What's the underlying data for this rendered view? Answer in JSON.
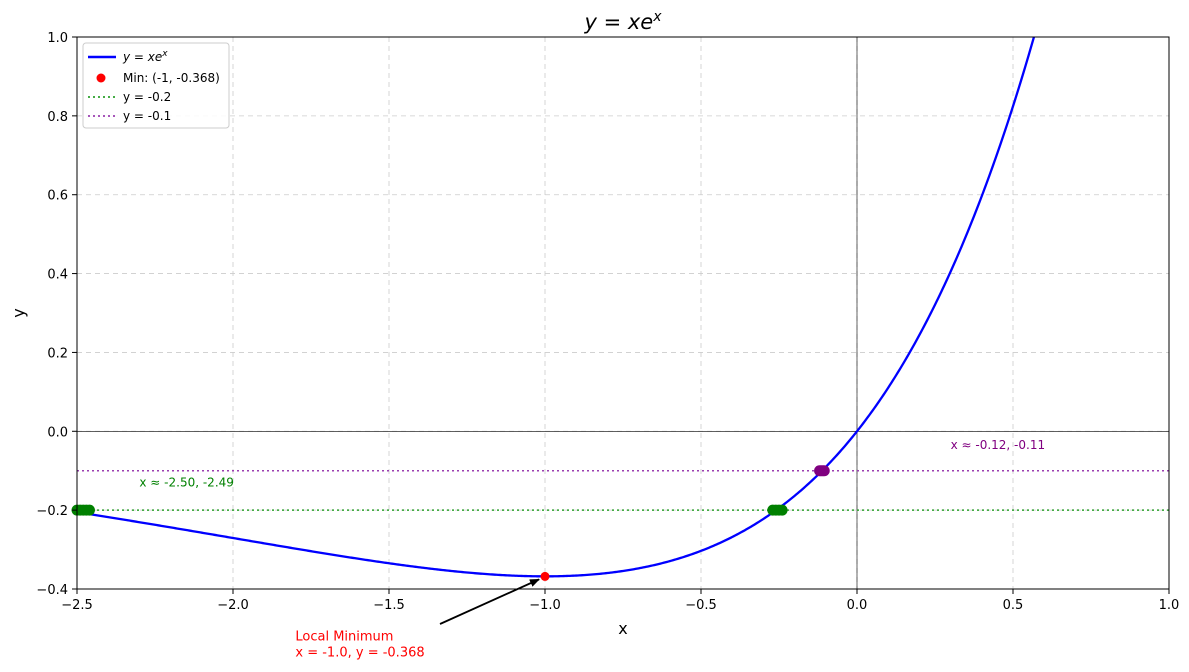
{
  "chart_data": {
    "type": "line",
    "title": "y = xe",
    "title_superscript": "x",
    "xlabel": "x",
    "ylabel": "y",
    "xlim": [
      -2.5,
      1.0
    ],
    "ylim": [
      -0.4,
      1.0
    ],
    "xticks": [
      -2.5,
      -2.0,
      -1.5,
      -1.0,
      -0.5,
      0.0,
      0.5,
      1.0
    ],
    "xtick_labels": [
      "−2.5",
      "−2.0",
      "−1.5",
      "−1.0",
      "−0.5",
      "0.0",
      "0.5",
      "1.0"
    ],
    "yticks": [
      -0.4,
      -0.2,
      0.0,
      0.2,
      0.4,
      0.6,
      0.8,
      1.0
    ],
    "ytick_labels": [
      "−0.4",
      "−0.2",
      "0.0",
      "0.2",
      "0.4",
      "0.6",
      "0.8",
      "1.0"
    ],
    "grid": true,
    "legend_placement": "top-left",
    "series": [
      {
        "name": "y = xe",
        "name_superscript": "x",
        "function": "x*exp(x)",
        "color": "#0000ff",
        "style": "solid"
      }
    ],
    "minimum_point": {
      "name": "Min: (-1, -0.368)",
      "x": -1.0,
      "y": -0.368,
      "color": "#ff0000"
    },
    "hlines": [
      {
        "name": "y = -0.2",
        "y": -0.2,
        "color": "#2ca02c",
        "style": "dotted"
      },
      {
        "name": "y = -0.1",
        "y": -0.1,
        "color": "#9b3fb0",
        "style": "dotted"
      }
    ],
    "intersection_points": [
      {
        "color": "#008000",
        "x": [
          -2.5,
          -2.49,
          -2.48,
          -2.47,
          -2.46
        ],
        "y": -0.2
      },
      {
        "color": "#008000",
        "x": [
          -0.27,
          -0.26,
          -0.25,
          -0.24
        ],
        "y": -0.2
      },
      {
        "color": "#800080",
        "x": [
          -0.12,
          -0.115,
          -0.11,
          -0.105
        ],
        "y": -0.1
      }
    ],
    "annotations": [
      {
        "text": "x ≈ -2.50, -2.49",
        "color": "#008000",
        "x": -2.3,
        "y": -0.14
      },
      {
        "text": "x ≈ -0.12, -0.11",
        "color": "#800080",
        "x": 0.3,
        "y": -0.045
      },
      {
        "text_lines": [
          "Local Minimum",
          "x = -1.0, y = -0.368"
        ],
        "color": "#ff0000",
        "x": -1.8,
        "y": -0.53,
        "arrow_to": {
          "x": -1.0,
          "y": -0.368
        }
      }
    ]
  }
}
